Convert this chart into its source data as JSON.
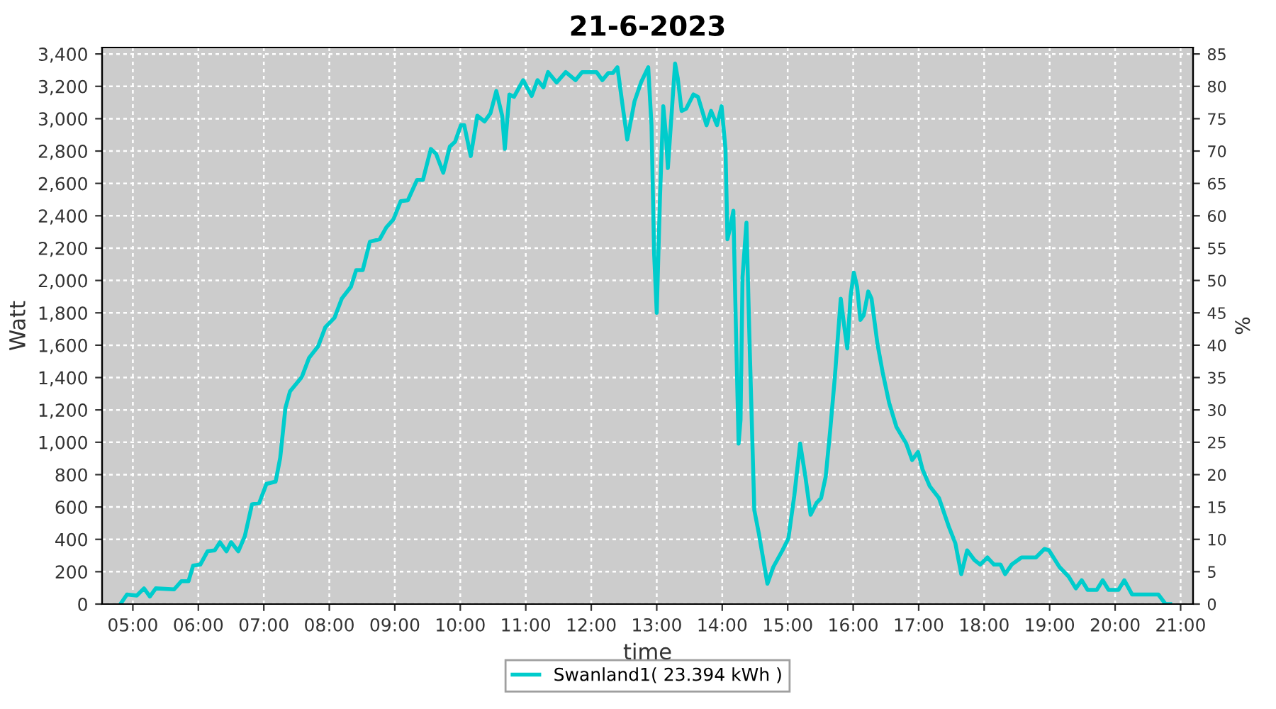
{
  "chart_data": {
    "type": "line",
    "title": "21-6-2023",
    "xlabel": "time",
    "ylabel": "Watt",
    "y2label": "%",
    "xlim": [
      4.53,
      21.19
    ],
    "xticks": [
      {
        "value": 5,
        "label": "05:00"
      },
      {
        "value": 6,
        "label": "06:00"
      },
      {
        "value": 7,
        "label": "07:00"
      },
      {
        "value": 8,
        "label": "08:00"
      },
      {
        "value": 9,
        "label": "09:00"
      },
      {
        "value": 10,
        "label": "10:00"
      },
      {
        "value": 11,
        "label": "11:00"
      },
      {
        "value": 12,
        "label": "12:00"
      },
      {
        "value": 13,
        "label": "13:00"
      },
      {
        "value": 14,
        "label": "14:00"
      },
      {
        "value": 15,
        "label": "15:00"
      },
      {
        "value": 16,
        "label": "16:00"
      },
      {
        "value": 17,
        "label": "17:00"
      },
      {
        "value": 18,
        "label": "18:00"
      },
      {
        "value": 19,
        "label": "19:00"
      },
      {
        "value": 20,
        "label": "20:00"
      },
      {
        "value": 21,
        "label": "21:00"
      }
    ],
    "ylim": [
      0,
      3440
    ],
    "yticks": [
      {
        "value": 0,
        "label": "0"
      },
      {
        "value": 200,
        "label": "200"
      },
      {
        "value": 400,
        "label": "400"
      },
      {
        "value": 600,
        "label": "600"
      },
      {
        "value": 800,
        "label": "800"
      },
      {
        "value": 1000,
        "label": "1,000"
      },
      {
        "value": 1200,
        "label": "1,200"
      },
      {
        "value": 1400,
        "label": "1,400"
      },
      {
        "value": 1600,
        "label": "1,600"
      },
      {
        "value": 1800,
        "label": "1,800"
      },
      {
        "value": 2000,
        "label": "2,000"
      },
      {
        "value": 2200,
        "label": "2,200"
      },
      {
        "value": 2400,
        "label": "2,400"
      },
      {
        "value": 2600,
        "label": "2,600"
      },
      {
        "value": 2800,
        "label": "2,800"
      },
      {
        "value": 3000,
        "label": "3,000"
      },
      {
        "value": 3200,
        "label": "3,200"
      },
      {
        "value": 3400,
        "label": "3,400"
      }
    ],
    "y2lim": [
      0,
      86
    ],
    "y2ticks": [
      0,
      5,
      10,
      15,
      20,
      25,
      30,
      35,
      40,
      45,
      50,
      55,
      60,
      65,
      70,
      75,
      80,
      85
    ],
    "grid": true,
    "legend": "bottom",
    "line_style": "solid",
    "marker": "none",
    "series": [
      {
        "name": "Swanland1( 23.394 kWh )",
        "color": "#00cccc",
        "x": [
          4.81,
          4.91,
          5.06,
          5.17,
          5.26,
          5.35,
          5.63,
          5.74,
          5.85,
          5.92,
          6.03,
          6.14,
          6.25,
          6.33,
          6.43,
          6.5,
          6.61,
          6.71,
          6.82,
          6.93,
          7.04,
          7.18,
          7.25,
          7.33,
          7.4,
          7.58,
          7.69,
          7.83,
          7.94,
          8.08,
          8.19,
          8.33,
          8.41,
          8.51,
          8.62,
          8.77,
          8.87,
          8.98,
          9.09,
          9.2,
          9.34,
          9.43,
          9.55,
          9.63,
          9.74,
          9.84,
          9.92,
          10.01,
          10.06,
          10.16,
          10.26,
          10.37,
          10.46,
          10.55,
          10.64,
          10.68,
          10.75,
          10.82,
          10.96,
          11.09,
          11.18,
          11.27,
          11.34,
          11.47,
          11.61,
          11.76,
          11.86,
          12.08,
          12.17,
          12.26,
          12.33,
          12.4,
          12.48,
          12.55,
          12.66,
          12.76,
          12.87,
          12.92,
          12.96,
          13.0,
          13.05,
          13.1,
          13.14,
          13.17,
          13.23,
          13.28,
          13.32,
          13.38,
          13.45,
          13.56,
          13.63,
          13.76,
          13.83,
          13.92,
          13.99,
          14.05,
          14.08,
          14.13,
          14.17,
          14.2,
          14.25,
          14.28,
          14.31,
          14.37,
          14.42,
          14.49,
          14.56,
          14.69,
          14.78,
          14.92,
          15.01,
          15.1,
          15.19,
          15.27,
          15.35,
          15.44,
          15.51,
          15.58,
          15.65,
          15.72,
          15.81,
          15.87,
          15.91,
          15.96,
          16.01,
          16.06,
          16.11,
          16.16,
          16.23,
          16.28,
          16.37,
          16.45,
          16.55,
          16.66,
          16.81,
          16.9,
          16.99,
          17.06,
          17.17,
          17.31,
          17.46,
          17.56,
          17.65,
          17.74,
          17.85,
          17.94,
          18.05,
          18.15,
          18.25,
          18.32,
          18.42,
          18.57,
          18.79,
          18.92,
          18.99,
          19.15,
          19.29,
          19.4,
          19.49,
          19.58,
          19.72,
          19.81,
          19.9,
          20.05,
          20.14,
          20.26,
          20.66,
          20.77,
          20.84
        ],
        "values": [
          0,
          59,
          53,
          97,
          47,
          97,
          91,
          141,
          141,
          238,
          244,
          326,
          332,
          382,
          326,
          382,
          326,
          420,
          617,
          625,
          743,
          757,
          904,
          1213,
          1315,
          1403,
          1521,
          1594,
          1712,
          1770,
          1888,
          1961,
          2064,
          2064,
          2240,
          2255,
          2328,
          2378,
          2490,
          2496,
          2622,
          2622,
          2813,
          2783,
          2666,
          2827,
          2857,
          2960,
          2960,
          2769,
          3018,
          2983,
          3033,
          3171,
          3018,
          2813,
          3150,
          3135,
          3238,
          3141,
          3238,
          3194,
          3288,
          3224,
          3288,
          3238,
          3288,
          3288,
          3238,
          3282,
          3282,
          3318,
          3077,
          2871,
          3106,
          3224,
          3318,
          2960,
          2167,
          1800,
          2519,
          3077,
          2901,
          2695,
          3048,
          3341,
          3253,
          3048,
          3062,
          3150,
          3135,
          2960,
          3048,
          2960,
          3077,
          2813,
          2255,
          2343,
          2431,
          1873,
          992,
          1139,
          2020,
          2358,
          1580,
          581,
          435,
          126,
          229,
          332,
          405,
          669,
          992,
          787,
          552,
          625,
          655,
          787,
          1080,
          1403,
          1888,
          1697,
          1580,
          1903,
          2049,
          1961,
          1756,
          1785,
          1932,
          1888,
          1609,
          1432,
          1242,
          1095,
          992,
          890,
          940,
          831,
          728,
          655,
          479,
          376,
          185,
          332,
          273,
          244,
          288,
          244,
          244,
          185,
          244,
          288,
          288,
          341,
          332,
          229,
          170,
          97,
          147,
          88,
          88,
          147,
          88,
          88,
          147,
          59,
          59,
          0,
          0
        ]
      }
    ]
  }
}
